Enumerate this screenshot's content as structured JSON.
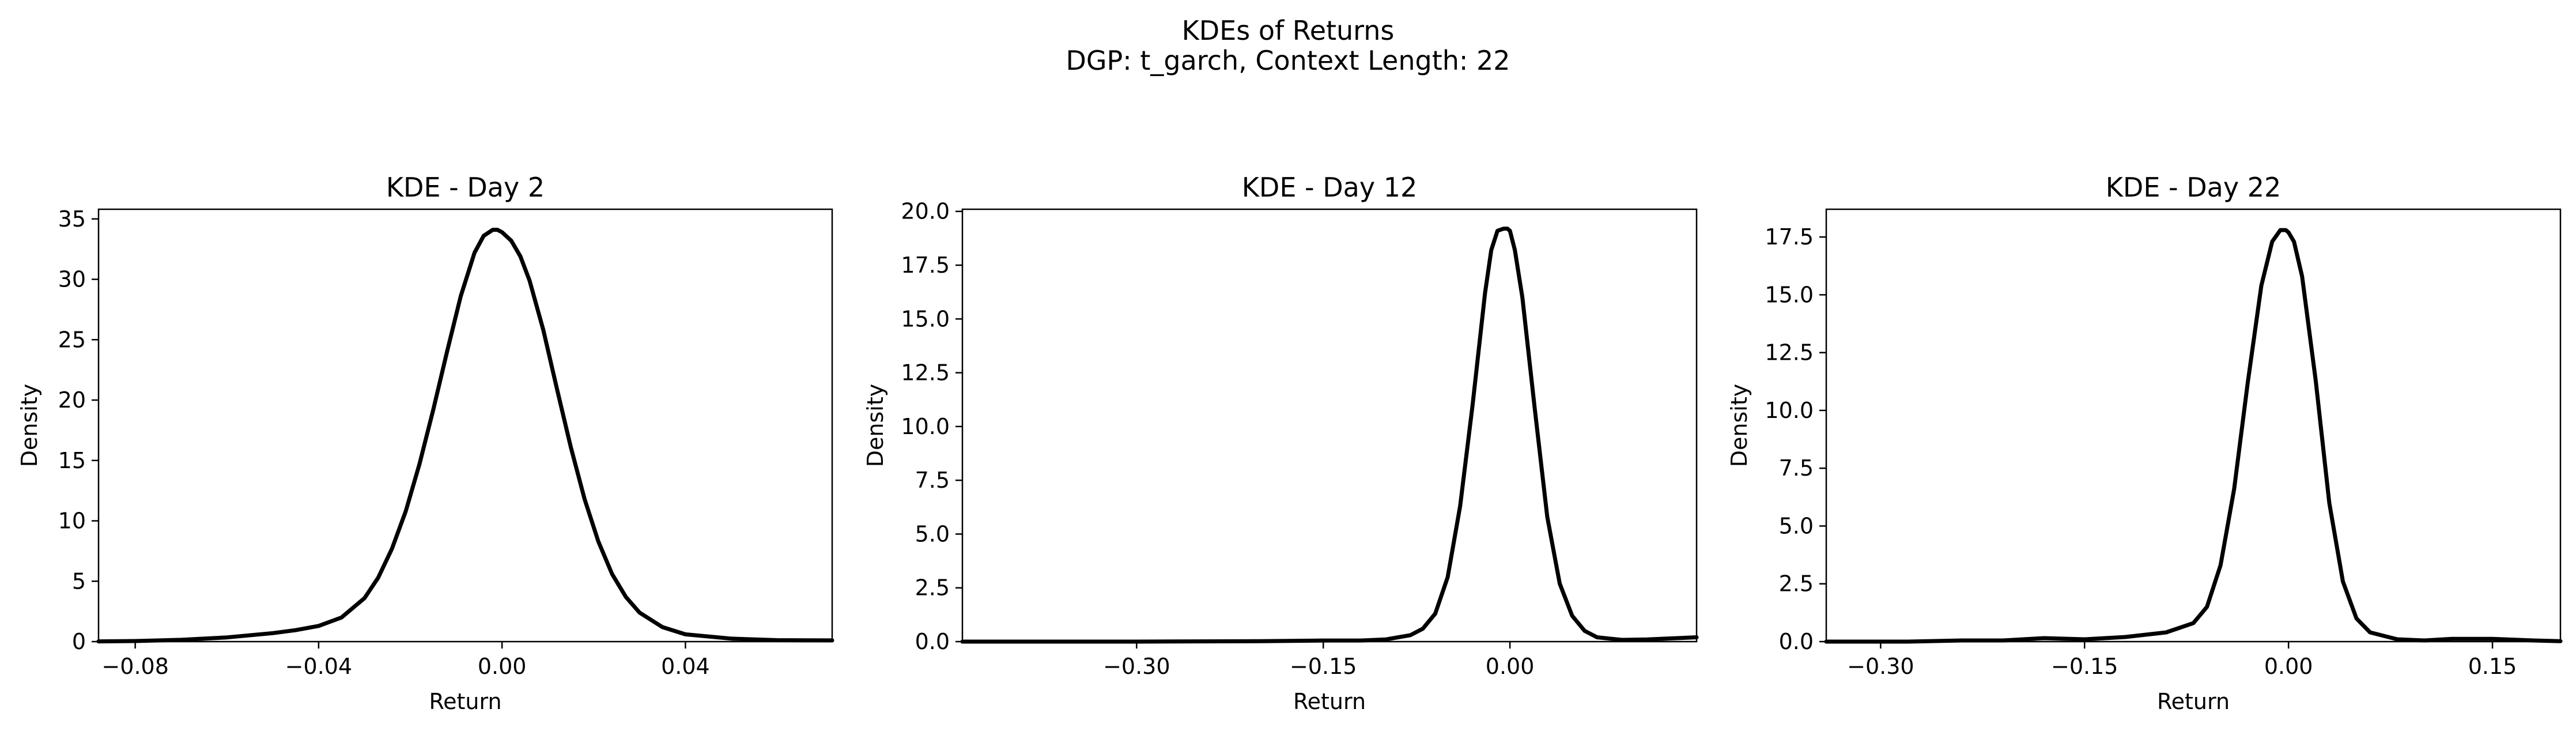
{
  "figure": {
    "title": "KDEs of Returns",
    "subtitle": "DGP: t_garch, Context Length: 22"
  },
  "chart_data": [
    {
      "type": "line",
      "title": "KDE - Day 2",
      "xlabel": "Return",
      "ylabel": "Density",
      "xlim": [
        -0.088,
        0.072
      ],
      "ylim": [
        0,
        35.8
      ],
      "xticks": [
        -0.08,
        -0.04,
        0.0,
        0.04
      ],
      "xtick_labels": [
        "−0.08",
        "−0.04",
        "0.00",
        "0.04"
      ],
      "yticks": [
        0,
        5,
        10,
        15,
        20,
        25,
        30,
        35
      ],
      "ytick_labels": [
        "0",
        "5",
        "10",
        "15",
        "20",
        "25",
        "30",
        "35"
      ],
      "grid": false,
      "line_color": "#000000",
      "x": [
        -0.088,
        -0.08,
        -0.07,
        -0.06,
        -0.05,
        -0.045,
        -0.04,
        -0.035,
        -0.03,
        -0.027,
        -0.024,
        -0.021,
        -0.018,
        -0.015,
        -0.012,
        -0.009,
        -0.006,
        -0.004,
        -0.002,
        -0.001,
        0.0,
        0.002,
        0.004,
        0.006,
        0.009,
        0.012,
        0.015,
        0.018,
        0.021,
        0.024,
        0.027,
        0.03,
        0.035,
        0.04,
        0.05,
        0.06,
        0.072
      ],
      "y": [
        0.02,
        0.05,
        0.15,
        0.35,
        0.7,
        0.95,
        1.3,
        2.0,
        3.6,
        5.3,
        7.7,
        10.8,
        14.7,
        19.2,
        24.0,
        28.6,
        32.2,
        33.6,
        34.1,
        34.1,
        33.9,
        33.2,
        31.9,
        29.9,
        25.8,
        20.9,
        16.1,
        11.8,
        8.3,
        5.6,
        3.7,
        2.4,
        1.2,
        0.6,
        0.25,
        0.12,
        0.1
      ]
    },
    {
      "type": "line",
      "title": "KDE - Day 12",
      "xlabel": "Return",
      "ylabel": "Density",
      "xlim": [
        -0.44,
        0.15
      ],
      "ylim": [
        0,
        20.1
      ],
      "xticks": [
        -0.3,
        -0.15,
        0.0
      ],
      "xtick_labels": [
        "−0.30",
        "−0.15",
        "0.00"
      ],
      "yticks": [
        0,
        2.5,
        5,
        7.5,
        10,
        12.5,
        15,
        17.5,
        20
      ],
      "ytick_labels": [
        "0.0",
        "2.5",
        "5.0",
        "7.5",
        "10.0",
        "12.5",
        "15.0",
        "17.5",
        "20.0"
      ],
      "grid": false,
      "line_color": "#000000",
      "x": [
        -0.44,
        -0.3,
        -0.2,
        -0.15,
        -0.12,
        -0.1,
        -0.08,
        -0.07,
        -0.06,
        -0.05,
        -0.04,
        -0.03,
        -0.02,
        -0.015,
        -0.01,
        -0.005,
        -0.002,
        0.0,
        0.004,
        0.01,
        0.02,
        0.03,
        0.04,
        0.05,
        0.06,
        0.07,
        0.09,
        0.11,
        0.13,
        0.15
      ],
      "y": [
        0.0,
        0.0,
        0.02,
        0.05,
        0.05,
        0.1,
        0.3,
        0.6,
        1.3,
        3.0,
        6.3,
        11.0,
        16.2,
        18.2,
        19.1,
        19.2,
        19.2,
        19.1,
        18.2,
        16.0,
        10.8,
        5.8,
        2.7,
        1.2,
        0.5,
        0.2,
        0.08,
        0.1,
        0.15,
        0.2
      ]
    },
    {
      "type": "line",
      "title": "KDE - Day 22",
      "xlabel": "Return",
      "ylabel": "Density",
      "xlim": [
        -0.34,
        0.2
      ],
      "ylim": [
        0,
        18.7
      ],
      "xticks": [
        -0.3,
        -0.15,
        0.0,
        0.15
      ],
      "xtick_labels": [
        "−0.30",
        "−0.15",
        "0.00",
        "0.15"
      ],
      "yticks": [
        0,
        2.5,
        5,
        7.5,
        10,
        12.5,
        15,
        17.5
      ],
      "ytick_labels": [
        "0.0",
        "2.5",
        "5.0",
        "7.5",
        "10.0",
        "12.5",
        "15.0",
        "17.5"
      ],
      "grid": false,
      "line_color": "#000000",
      "x": [
        -0.34,
        -0.28,
        -0.24,
        -0.21,
        -0.18,
        -0.15,
        -0.12,
        -0.09,
        -0.07,
        -0.06,
        -0.05,
        -0.04,
        -0.03,
        -0.02,
        -0.012,
        -0.006,
        -0.002,
        0.0,
        0.004,
        0.01,
        0.02,
        0.03,
        0.04,
        0.05,
        0.06,
        0.08,
        0.1,
        0.12,
        0.15,
        0.18,
        0.2
      ],
      "y": [
        0.0,
        0.0,
        0.05,
        0.05,
        0.15,
        0.1,
        0.2,
        0.4,
        0.8,
        1.5,
        3.3,
        6.6,
        11.2,
        15.4,
        17.3,
        17.8,
        17.8,
        17.7,
        17.3,
        15.8,
        11.3,
        6.0,
        2.6,
        1.0,
        0.4,
        0.1,
        0.05,
        0.12,
        0.12,
        0.05,
        0.02
      ]
    }
  ]
}
